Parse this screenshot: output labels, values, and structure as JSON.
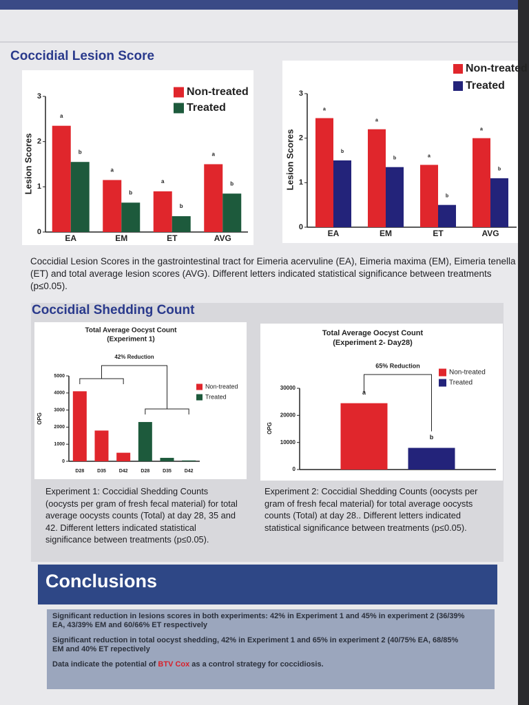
{
  "lesion": {
    "title": "Coccidial Lesion Score",
    "caption": "Coccidial Lesion Scores in the gastrointestinal tract for Eimeria acervuline (EA), Eimeria maxima (EM), Eimeria tenella (ET) and total average lesion scores (AVG).  Different letters indicated statistical significance between treatments (p≤0.05)."
  },
  "shedding": {
    "title": "Coccidial Shedding Count",
    "captions": [
      "Experiment 1: Coccidial Shedding Counts (oocysts per gram of fresh fecal material) for total average oocysts counts (Total) at day 28, 35 and 42.  Different letters indicated statistical significance between treatments (p≤0.05).",
      "Experiment 2: Coccidial Shedding Counts (oocysts per gram of fresh fecal material) for total average oocysts counts (Total) at day 28.. Different letters indicated statistical significance between treatments (p≤0.05)."
    ]
  },
  "conclusions": {
    "title": "Conclusions",
    "items": [
      "Significant reduction in lesions scores in both experiments: 42% in Experiment 1 and 45% in experiment 2 (36/39% EA, 43/39% EM and 60/66% ET respectively",
      "Significant reduction in total oocyst shedding, 42% in Experiment 1 and 65% in experiment 2 (40/75% EA, 68/85% EM and 40% ET repectively"
    ],
    "last": [
      "Data indicate the potential of ",
      "BTV Cox",
      " as a control strategy for coccidiosis."
    ]
  },
  "chart_data": [
    {
      "type": "bar",
      "y_label": "Lesion Scores",
      "categories": [
        "EA",
        "EM",
        "ET",
        "AVG"
      ],
      "series": [
        {
          "name": "Non-treated",
          "color": "#e0262c",
          "values": [
            2.35,
            1.15,
            0.9,
            1.5
          ],
          "letters": [
            "a",
            "a",
            "a",
            "a"
          ]
        },
        {
          "name": "Treated",
          "color": "#1d5a3c",
          "values": [
            1.55,
            0.65,
            0.35,
            0.85
          ],
          "letters": [
            "b",
            "b",
            "b",
            "b"
          ]
        }
      ],
      "ylim": [
        0,
        3
      ],
      "yticks": [
        0,
        1,
        2,
        3
      ],
      "legend": "top-right"
    },
    {
      "type": "bar",
      "y_label": "Lesion Scores",
      "categories": [
        "EA",
        "EM",
        "ET",
        "AVG"
      ],
      "series": [
        {
          "name": "Non-treated",
          "color": "#e0262c",
          "values": [
            2.45,
            2.2,
            1.4,
            2.0
          ],
          "letters": [
            "a",
            "a",
            "a",
            "a"
          ]
        },
        {
          "name": "Treated",
          "color": "#23237a",
          "values": [
            1.5,
            1.35,
            0.5,
            1.1
          ],
          "letters": [
            "b",
            "b",
            "b",
            "b"
          ]
        }
      ],
      "ylim": [
        0,
        3
      ],
      "yticks": [
        0,
        1,
        2,
        3
      ],
      "legend": "top-right"
    },
    {
      "type": "bar",
      "title": "Total Average Oocyst Count",
      "subtitle": "(Experiment 1)",
      "annotation": "42% Reduction",
      "y_label": "OPG",
      "categories": [
        "D28",
        "D35",
        "D42"
      ],
      "series": [
        {
          "name": "Non-treated",
          "color": "#e0262c",
          "values": [
            4100,
            1800,
            500
          ]
        },
        {
          "name": "Treated",
          "color": "#1d5a3c",
          "values": [
            2300,
            200,
            50
          ]
        }
      ],
      "ylim": [
        0,
        5000
      ],
      "yticks": [
        0,
        1000,
        2000,
        3000,
        4000,
        5000
      ],
      "legend": "top-right"
    },
    {
      "type": "bar",
      "title": "Total Average Oocyst Count",
      "subtitle": "(Experiment 2- Day28)",
      "annotation": "65% Reduction",
      "y_label": "OPG",
      "categories": [
        null
      ],
      "series": [
        {
          "name": "Non-treated",
          "color": "#e0262c",
          "values": [
            24500
          ],
          "letters": [
            "a"
          ]
        },
        {
          "name": "Treated",
          "color": "#23237a",
          "values": [
            8000
          ],
          "letters": [
            "b"
          ]
        }
      ],
      "ylim": [
        0,
        30000
      ],
      "yticks": [
        0,
        10000,
        20000,
        30000
      ],
      "legend": "top-right"
    }
  ]
}
